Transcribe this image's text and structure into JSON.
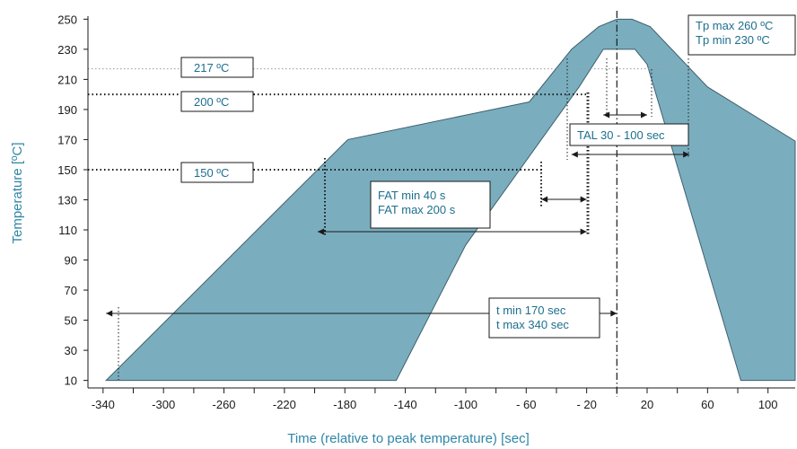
{
  "chart_data": {
    "type": "area",
    "title": "",
    "xlabel": "Time (relative to peak temperature) [sec]",
    "ylabel": "Temperature [ºC]",
    "xlim": [
      -350,
      118
    ],
    "ylim": [
      5,
      252
    ],
    "x_ticks": [
      -340,
      -300,
      -260,
      -220,
      -180,
      -140,
      -100,
      -60,
      -20,
      20,
      60,
      100
    ],
    "x_tick_labels": [
      "-340",
      "-300",
      "-260",
      "-220",
      "-180",
      "-140",
      "-100",
      "- 60",
      "- 20",
      "20",
      "60",
      "100"
    ],
    "y_ticks": [
      10,
      30,
      50,
      70,
      90,
      110,
      130,
      150,
      170,
      190,
      210,
      230,
      250
    ],
    "grid": false,
    "fill_color": "#7aaebf",
    "accent_color": "#2f86a6",
    "series": [
      {
        "x": [
          -338,
          -178,
          -58,
          -30,
          -12,
          0,
          10,
          22,
          60,
          118,
          118,
          82,
          20,
          12,
          0,
          -9,
          -25,
          -100,
          -146
        ],
        "y": [
          10,
          170,
          195,
          230,
          245,
          250,
          250,
          245,
          205,
          169,
          10,
          10,
          220,
          230,
          230,
          230,
          205,
          100,
          10
        ]
      }
    ],
    "reference_lines": [
      {
        "y": 217,
        "label": "217 ºC"
      },
      {
        "y": 200,
        "label": "200 ºC"
      },
      {
        "y": 150,
        "label": "150 ºC"
      }
    ],
    "peak_line": {
      "x": 0
    },
    "annotations": [
      {
        "type": "box",
        "lines": [
          "Tp max 260 ºC",
          "Tp min  230 ºC"
        ]
      },
      {
        "type": "span",
        "lines": [
          "TAL 30 - 100 sec"
        ],
        "inner": [
          -9,
          20
        ],
        "outer": [
          -30,
          48
        ]
      },
      {
        "type": "span",
        "lines": [
          "FAT min 40 s",
          "FAT max 200 s"
        ],
        "inner": [
          -50,
          -20
        ],
        "outer": [
          -198,
          -20
        ]
      },
      {
        "type": "span",
        "lines": [
          "t min 170 sec",
          "t max 340 sec"
        ],
        "outer": [
          -338,
          0
        ]
      }
    ]
  }
}
